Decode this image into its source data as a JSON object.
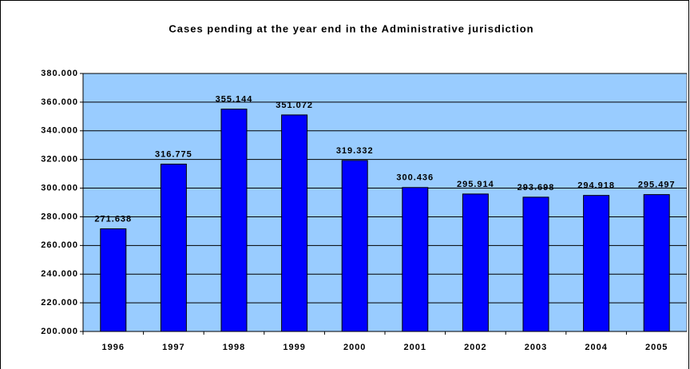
{
  "chart_data": {
    "type": "bar",
    "title": "Cases pending at the year end in the Administrative jurisdiction",
    "categories": [
      "1996",
      "1997",
      "1998",
      "1999",
      "2000",
      "2001",
      "2002",
      "2003",
      "2004",
      "2005"
    ],
    "values": [
      271638,
      316775,
      355144,
      351072,
      319332,
      300436,
      295914,
      293698,
      294918,
      295497
    ],
    "value_labels": [
      "271.638",
      "316.775",
      "355.144",
      "351.072",
      "319.332",
      "300.436",
      "295.914",
      "293.698",
      "294.918",
      "295.497"
    ],
    "color": "#0000ff",
    "plot_background": "#99ccff",
    "ylim": [
      200000,
      380000
    ],
    "yticks": [
      {
        "value": 200000,
        "label": "200.000"
      },
      {
        "value": 220000,
        "label": "220.000"
      },
      {
        "value": 240000,
        "label": "240.000"
      },
      {
        "value": 260000,
        "label": "260.000"
      },
      {
        "value": 280000,
        "label": "280.000"
      },
      {
        "value": 300000,
        "label": "300.000"
      },
      {
        "value": 320000,
        "label": "320.000"
      },
      {
        "value": 340000,
        "label": "340.000"
      },
      {
        "value": 360000,
        "label": "360.000"
      },
      {
        "value": 380000,
        "label": "380.000"
      }
    ],
    "grid": true
  }
}
